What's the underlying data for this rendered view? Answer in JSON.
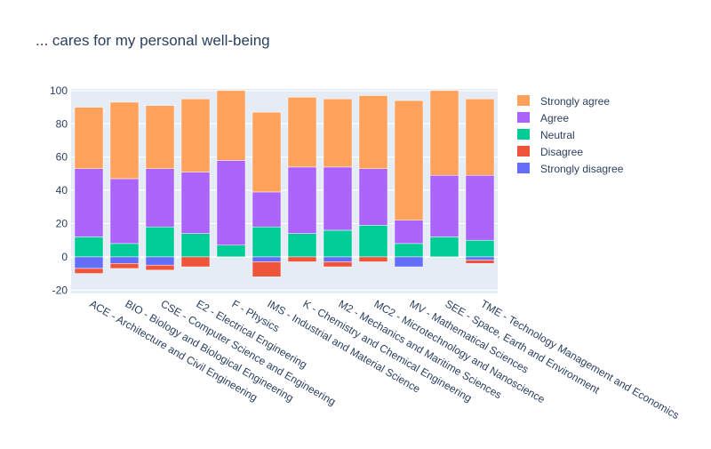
{
  "chart_data": {
    "type": "bar",
    "barmode": "relative",
    "title": "... cares for my personal well-being",
    "xlabel": "",
    "ylabel": "",
    "ylim": [
      -22,
      101
    ],
    "yticks": [
      -20,
      0,
      20,
      40,
      60,
      80,
      100
    ],
    "grid": true,
    "legend_position": "top-right",
    "categories": [
      "ACE - Architecture and Civil Engineering",
      "BIO - Biology and Biological Engineering",
      "CSE - Computer Science and Engineering",
      "E2 - Electrical Engineering",
      "F - Physics",
      "IMS - Industrial and Material Science",
      "K - Chemistry and Chemical Engineering",
      "M2 - Mechanics and Maritime Sciences",
      "MC2 - Microtechnology and Nanoscience",
      "MV - Mathematical Sciences",
      "SEE - Space, Earth and Environment",
      "TME - Technology Management and Economics"
    ],
    "series": [
      {
        "name": "Strongly agree",
        "color": "#FFA15A",
        "values": [
          37,
          46,
          38,
          44,
          42,
          48,
          42,
          41,
          44,
          72,
          51,
          46
        ]
      },
      {
        "name": "Agree",
        "color": "#AB63FA",
        "values": [
          41,
          39,
          35,
          37,
          51,
          21,
          40,
          38,
          34,
          14,
          37,
          39
        ]
      },
      {
        "name": "Neutral",
        "color": "#00CC96",
        "values": [
          12,
          8,
          18,
          14,
          7,
          18,
          14,
          16,
          19,
          8,
          12,
          10
        ]
      },
      {
        "name": "Disagree",
        "color": "#EF553B",
        "values": [
          -3,
          -3,
          -3,
          -6,
          0,
          -9,
          -3,
          -3,
          -3,
          0,
          0,
          -2
        ]
      },
      {
        "name": "Strongly disagree",
        "color": "#636EFA",
        "values": [
          -7,
          -4,
          -5,
          0,
          0,
          -3,
          0,
          -3,
          0,
          -6,
          0,
          -2
        ]
      }
    ]
  }
}
